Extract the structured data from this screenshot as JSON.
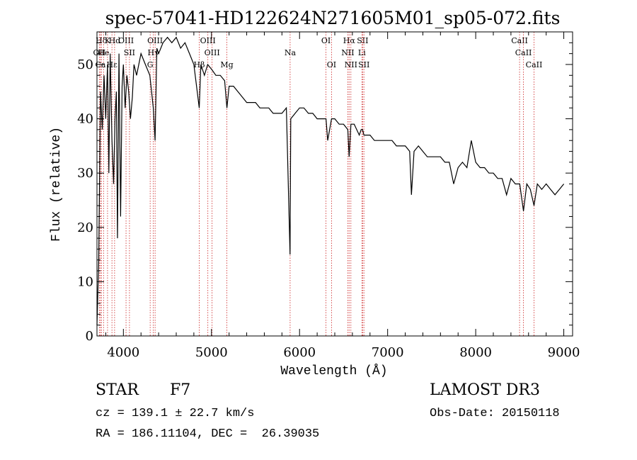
{
  "chart_data": {
    "type": "line",
    "title": "spec-57041-HD122624N271605M01_sp05-072.fits",
    "xlabel": "Wavelength (Å)",
    "ylabel": "Flux (relative)",
    "xlim": [
      3700,
      9100
    ],
    "ylim": [
      0,
      56
    ],
    "xticks": [
      4000,
      5000,
      6000,
      7000,
      8000,
      9000
    ],
    "yticks": [
      0,
      10,
      20,
      30,
      40,
      50
    ],
    "grid": false,
    "line_color": "#000000",
    "marker_color": "#cc2222",
    "series": [
      {
        "x": [
          3700,
          3720,
          3740,
          3760,
          3780,
          3800,
          3820,
          3835,
          3850,
          3870,
          3889,
          3905,
          3920,
          3933,
          3950,
          3968,
          3985,
          4000,
          4020,
          4040,
          4060,
          4080,
          4102,
          4120,
          4150,
          4200,
          4250,
          4300,
          4340,
          4360,
          4380,
          4400,
          4450,
          4500,
          4550,
          4600,
          4650,
          4700,
          4750,
          4800,
          4861,
          4880,
          4920,
          4957,
          5007,
          5050,
          5100,
          5150,
          5175,
          5200,
          5250,
          5300,
          5350,
          5400,
          5450,
          5500,
          5550,
          5600,
          5650,
          5700,
          5750,
          5800,
          5850,
          5892,
          5900,
          5950,
          6000,
          6050,
          6100,
          6150,
          6200,
          6250,
          6300,
          6320,
          6363,
          6400,
          6450,
          6500,
          6548,
          6563,
          6583,
          6620,
          6678,
          6700,
          6716,
          6731,
          6800,
          6850,
          6900,
          6950,
          7000,
          7050,
          7100,
          7150,
          7200,
          7250,
          7270,
          7300,
          7350,
          7400,
          7450,
          7500,
          7550,
          7600,
          7650,
          7700,
          7750,
          7800,
          7850,
          7900,
          7950,
          8000,
          8050,
          8100,
          8150,
          8200,
          8250,
          8300,
          8350,
          8400,
          8450,
          8500,
          8542,
          8580,
          8620,
          8662,
          8700,
          8750,
          8800,
          8850,
          8900,
          8950,
          9000
        ],
        "y": [
          2,
          14,
          45,
          38,
          48,
          40,
          50,
          30,
          52,
          36,
          28,
          40,
          45,
          18,
          52,
          22,
          46,
          50,
          42,
          48,
          45,
          40,
          44,
          50,
          48,
          52,
          50,
          48,
          42,
          36,
          53,
          52,
          54,
          55,
          54,
          55,
          53,
          54,
          52,
          50,
          42,
          50,
          48,
          50,
          49,
          48,
          48,
          47,
          42,
          46,
          46,
          45,
          44,
          43,
          43,
          43,
          42,
          42,
          42,
          41,
          41,
          41,
          42,
          15,
          40,
          41,
          42,
          42,
          41,
          41,
          40,
          40,
          40,
          36,
          40,
          40,
          39,
          39,
          38,
          33,
          39,
          39,
          37,
          38,
          38,
          37,
          37,
          36,
          36,
          36,
          36,
          36,
          35,
          35,
          35,
          34,
          26,
          34,
          35,
          34,
          33,
          33,
          33,
          33,
          32,
          32,
          28,
          31,
          32,
          31,
          36,
          32,
          31,
          31,
          30,
          30,
          29,
          29,
          26,
          29,
          28,
          28,
          23,
          28,
          27,
          24,
          28,
          27,
          28,
          27,
          26,
          27,
          28
        ]
      }
    ],
    "lines": [
      {
        "name": "Hδ",
        "x": 3750,
        "row": 1
      },
      {
        "name": "K",
        "x": 3820,
        "row": 1
      },
      {
        "name": "Hd",
        "x": 3900,
        "row": 1
      },
      {
        "name": "OIII",
        "x": 4030,
        "row": 1
      },
      {
        "name": "OIII",
        "x": 4360,
        "row": 1
      },
      {
        "name": "OIII",
        "x": 4959,
        "row": 1
      },
      {
        "name": "OI",
        "x": 6300,
        "row": 1
      },
      {
        "name": "Hα",
        "x": 6563,
        "row": 1
      },
      {
        "name": "SII",
        "x": 6716,
        "row": 1
      },
      {
        "name": "CaII",
        "x": 8498,
        "row": 1
      },
      {
        "name": "OII",
        "x": 3727,
        "row": 2
      },
      {
        "name": "He",
        "x": 3775,
        "row": 2
      },
      {
        "name": "SII",
        "x": 4069,
        "row": 2
      },
      {
        "name": "Hγ",
        "x": 4340,
        "row": 2
      },
      {
        "name": "OIII",
        "x": 5007,
        "row": 2
      },
      {
        "name": "Na",
        "x": 5893,
        "row": 2
      },
      {
        "name": "NII",
        "x": 6548,
        "row": 2
      },
      {
        "name": "Li",
        "x": 6708,
        "row": 2
      },
      {
        "name": "CaII",
        "x": 8542,
        "row": 2
      },
      {
        "name": "Ca",
        "x": 3740,
        "row": 3
      },
      {
        "name": "Hε",
        "x": 3870,
        "row": 3
      },
      {
        "name": "G",
        "x": 4304,
        "row": 3
      },
      {
        "name": "Hβ",
        "x": 4861,
        "row": 3
      },
      {
        "name": "Mg",
        "x": 5175,
        "row": 3
      },
      {
        "name": "OI",
        "x": 6363,
        "row": 3
      },
      {
        "name": "NII",
        "x": 6583,
        "row": 3
      },
      {
        "name": "SII",
        "x": 6731,
        "row": 3
      },
      {
        "name": "CaII",
        "x": 8662,
        "row": 3
      }
    ]
  },
  "info": {
    "object_class": "STAR",
    "subclass": "F7",
    "survey": "LAMOST DR3",
    "redshift": "cz = 139.1 ± 22.7 km/s",
    "obs_date": "Obs-Date: 20150118",
    "coords": "RA = 186.11104, DEC =  26.39035"
  }
}
